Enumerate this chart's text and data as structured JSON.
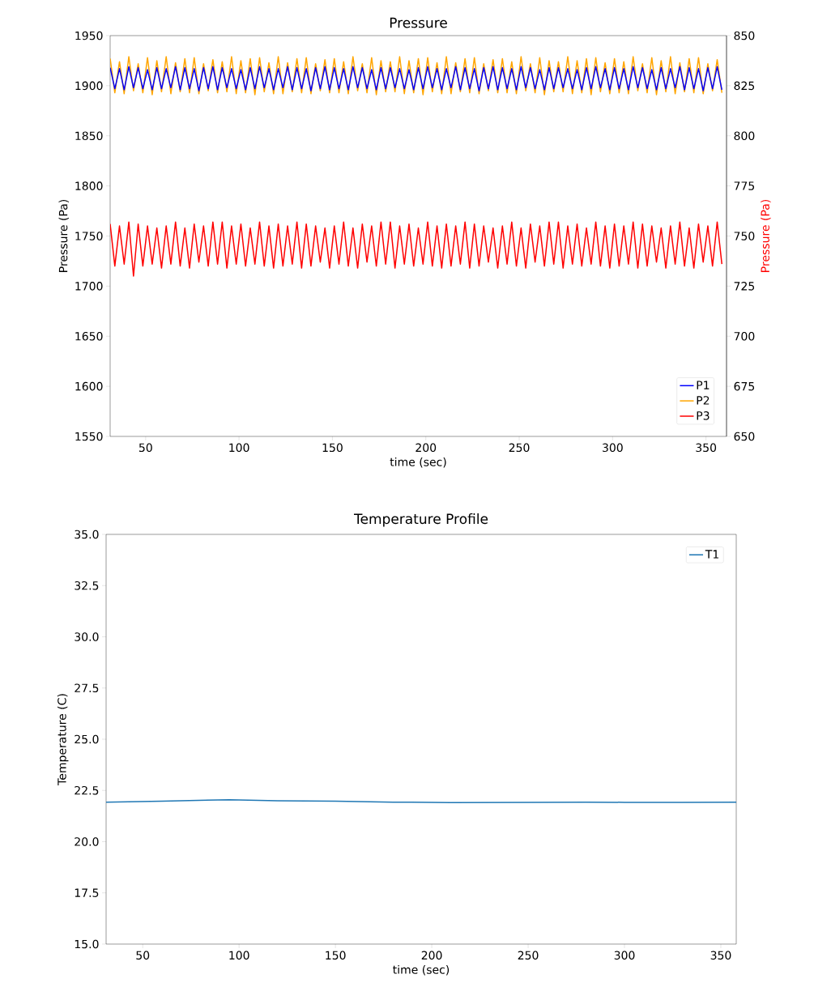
{
  "chart_data": [
    {
      "type": "line",
      "title": "Pressure",
      "xlabel": "time (sec)",
      "ylabel": "Pressure (Pa)",
      "y2label": "Pressure (Pa)",
      "xlim": [
        31,
        361
      ],
      "xticks": [
        50,
        100,
        150,
        200,
        250,
        300,
        350
      ],
      "ylim": [
        1550,
        1950
      ],
      "yticks": [
        1550,
        1600,
        1650,
        1700,
        1750,
        1800,
        1850,
        1900,
        1950
      ],
      "y2lim": [
        650,
        850
      ],
      "y2ticks": [
        650,
        675,
        700,
        725,
        750,
        775,
        800,
        825,
        850
      ],
      "legend": "bottom right",
      "x": [
        31,
        33.5,
        36,
        38.5,
        41,
        43.5,
        46,
        48.5,
        51,
        53.5,
        56,
        58.5,
        61,
        63.5,
        66,
        68.5,
        71,
        73.5,
        76,
        78.5,
        81,
        83.5,
        86,
        88.5,
        91,
        93.5,
        96,
        98.5,
        101,
        103.5,
        106,
        108.5,
        111,
        113.5,
        116,
        118.5,
        121,
        123.5,
        126,
        128.5,
        131,
        133.5,
        136,
        138.5,
        141,
        143.5,
        146,
        148.5,
        151,
        153.5,
        156,
        158.5,
        161,
        163.5,
        166,
        168.5,
        171,
        173.5,
        176,
        178.5,
        181,
        183.5,
        186,
        188.5,
        191,
        193.5,
        196,
        198.5,
        201,
        203.5,
        206,
        208.5,
        211,
        213.5,
        216,
        218.5,
        221,
        223.5,
        226,
        228.5,
        231,
        233.5,
        236,
        238.5,
        241,
        243.5,
        246,
        248.5,
        251,
        253.5,
        256,
        258.5,
        261,
        263.5,
        266,
        268.5,
        271,
        273.5,
        276,
        278.5,
        281,
        283.5,
        286,
        288.5,
        291,
        293.5,
        296,
        298.5,
        301,
        303.5,
        306,
        308.5,
        311,
        313.5,
        316,
        318.5,
        321,
        323.5,
        326,
        328.5,
        331,
        333.5,
        336,
        338.5,
        341,
        343.5,
        346,
        348.5,
        351,
        353.5,
        356,
        358.5
      ],
      "series": [
        {
          "name": "P1",
          "color": "#0000ff",
          "values": [
            1918,
            1897,
            1917,
            1896,
            1919,
            1898,
            1918,
            1897,
            1916,
            1896,
            1918,
            1897,
            1917,
            1898,
            1919,
            1896,
            1918,
            1897,
            1917,
            1895,
            1918,
            1897,
            1919,
            1896,
            1918,
            1898,
            1917,
            1897,
            1916,
            1896,
            1918,
            1897,
            1919,
            1898,
            1917,
            1896,
            1917,
            1898,
            1919,
            1896,
            1918,
            1897,
            1917,
            1895,
            1918,
            1897,
            1919,
            1896,
            1918,
            1897,
            1917,
            1896,
            1919,
            1898,
            1918,
            1897,
            1916,
            1896,
            1918,
            1897,
            1918,
            1898,
            1917,
            1897,
            1916,
            1896,
            1918,
            1897,
            1919,
            1898,
            1917,
            1896,
            1917,
            1898,
            1919,
            1896,
            1918,
            1897,
            1917,
            1895,
            1918,
            1897,
            1919,
            1896,
            1918,
            1897,
            1917,
            1896,
            1919,
            1898,
            1918,
            1897,
            1916,
            1896,
            1918,
            1897,
            1918,
            1898,
            1917,
            1897,
            1916,
            1896,
            1918,
            1897,
            1919,
            1898,
            1917,
            1896,
            1918,
            1897,
            1917,
            1896,
            1919,
            1898,
            1918,
            1897,
            1916,
            1896,
            1918,
            1897,
            1917,
            1898,
            1919,
            1896,
            1918,
            1897,
            1917,
            1895,
            1918,
            1897,
            1919,
            1896
          ]
        },
        {
          "name": "P2",
          "color": "#ffa500",
          "values": [
            1927,
            1893,
            1924,
            1892,
            1929,
            1895,
            1922,
            1893,
            1928,
            1891,
            1925,
            1894,
            1929,
            1892,
            1923,
            1894,
            1927,
            1893,
            1928,
            1892,
            1922,
            1895,
            1926,
            1893,
            1924,
            1894,
            1929,
            1892,
            1925,
            1893,
            1927,
            1891,
            1928,
            1894,
            1923,
            1892,
            1929,
            1892,
            1923,
            1894,
            1927,
            1893,
            1928,
            1892,
            1922,
            1895,
            1926,
            1893,
            1927,
            1893,
            1924,
            1892,
            1929,
            1895,
            1922,
            1893,
            1928,
            1891,
            1925,
            1894,
            1924,
            1894,
            1929,
            1892,
            1925,
            1893,
            1927,
            1891,
            1928,
            1894,
            1923,
            1892,
            1929,
            1892,
            1923,
            1894,
            1927,
            1893,
            1928,
            1892,
            1922,
            1895,
            1926,
            1893,
            1927,
            1893,
            1924,
            1892,
            1929,
            1895,
            1922,
            1893,
            1928,
            1891,
            1925,
            1894,
            1924,
            1894,
            1929,
            1892,
            1925,
            1893,
            1927,
            1891,
            1928,
            1894,
            1923,
            1892,
            1927,
            1893,
            1924,
            1892,
            1929,
            1895,
            1922,
            1893,
            1928,
            1891,
            1925,
            1894,
            1929,
            1892,
            1923,
            1894,
            1927,
            1893,
            1928,
            1892,
            1922,
            1895,
            1926,
            1893
          ]
        },
        {
          "name": "P3",
          "color": "#ff0000",
          "axis": "y2",
          "values": [
            756,
            735,
            755,
            736,
            757,
            730,
            756,
            735,
            755,
            736,
            754,
            734,
            755,
            736,
            757,
            735,
            754,
            734,
            756,
            737,
            755,
            735,
            757,
            736,
            757,
            734,
            755,
            736,
            756,
            735,
            754,
            736,
            757,
            735,
            755,
            734,
            756,
            735,
            755,
            736,
            757,
            734,
            756,
            735,
            755,
            737,
            754,
            734,
            755,
            736,
            757,
            735,
            754,
            734,
            756,
            737,
            755,
            735,
            757,
            736,
            757,
            734,
            755,
            736,
            756,
            735,
            754,
            736,
            757,
            735,
            755,
            734,
            756,
            735,
            755,
            736,
            757,
            734,
            756,
            735,
            755,
            737,
            754,
            734,
            755,
            736,
            757,
            735,
            754,
            734,
            756,
            737,
            755,
            735,
            757,
            736,
            757,
            734,
            755,
            736,
            756,
            735,
            754,
            736,
            757,
            735,
            755,
            734,
            756,
            735,
            755,
            736,
            757,
            734,
            756,
            735,
            755,
            737,
            754,
            734,
            755,
            736,
            757,
            735,
            754,
            734,
            756,
            737,
            755,
            735,
            757,
            736
          ]
        }
      ]
    },
    {
      "type": "line",
      "title": "Temperature Profile",
      "xlabel": "time (sec)",
      "ylabel": "Temperature (C)",
      "xlim": [
        31,
        358
      ],
      "xticks": [
        50,
        100,
        150,
        200,
        250,
        300,
        350
      ],
      "ylim": [
        15,
        35
      ],
      "yticks": [
        {
          "value": 15,
          "label": "15.0"
        },
        {
          "value": 17.5,
          "label": "17.5"
        },
        {
          "value": 20,
          "label": "20.0"
        },
        {
          "value": 22.5,
          "label": "22.5"
        },
        {
          "value": 25,
          "label": "25.0"
        },
        {
          "value": 27.5,
          "label": "27.5"
        },
        {
          "value": 30,
          "label": "30.0"
        },
        {
          "value": 32.5,
          "label": "32.5"
        },
        {
          "value": 35,
          "label": "35.0"
        }
      ],
      "legend": "top right",
      "x": [
        31,
        60,
        95,
        120,
        150,
        180,
        210,
        250,
        280,
        300,
        330,
        358
      ],
      "series": [
        {
          "name": "T1",
          "color": "#1f77b4",
          "values": [
            21.93,
            21.98,
            22.05,
            22.0,
            21.98,
            21.93,
            21.91,
            21.92,
            21.93,
            21.92,
            21.92,
            21.93
          ]
        }
      ]
    }
  ]
}
